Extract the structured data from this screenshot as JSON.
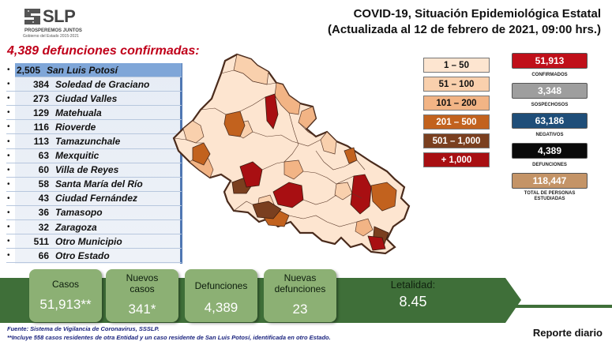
{
  "header": {
    "logo_text": "SLP",
    "logo_sub1": "PROSPEREMOS JUNTOS",
    "logo_sub2": "Gobierno del Estado 2015-2021",
    "title_line1": "COVID-19, Situación Epidemiológica Estatal",
    "title_line2": "(Actualizada al 12 de febrero de 2021, 09:00 hrs.)"
  },
  "deaths_heading": "4,389 defunciones confirmadas:",
  "municipalities": [
    {
      "bullet": "•",
      "count": "2,505",
      "name": "San Luis Potosí"
    },
    {
      "bullet": "•",
      "count": "384",
      "name": "Soledad de Graciano"
    },
    {
      "bullet": "•",
      "count": "273",
      "name": "Ciudad Valles"
    },
    {
      "bullet": "•",
      "count": "129",
      "name": "Matehuala"
    },
    {
      "bullet": "•",
      "count": "116",
      "name": "Rioverde"
    },
    {
      "bullet": "•",
      "count": "113",
      "name": "Tamazunchale"
    },
    {
      "bullet": "•",
      "count": "63",
      "name": "Mexquitic"
    },
    {
      "bullet": "•",
      "count": "60",
      "name": "Villa de Reyes"
    },
    {
      "bullet": "•",
      "count": "58",
      "name": "Santa María del Río"
    },
    {
      "bullet": "•",
      "count": "43",
      "name": "Ciudad Fernández"
    },
    {
      "bullet": "•",
      "count": "36",
      "name": "Tamasopo"
    },
    {
      "bullet": "•",
      "count": "32",
      "name": "Zaragoza"
    },
    {
      "bullet": "•",
      "count": "511",
      "name": "Otro Municipio"
    },
    {
      "bullet": "•",
      "count": "66",
      "name": "Otro Estado"
    }
  ],
  "legend": [
    {
      "label": "1 – 50",
      "bg": "#fde5d0",
      "fg": "#111111"
    },
    {
      "label": "51 – 100",
      "bg": "#f9d0ad",
      "fg": "#111111"
    },
    {
      "label": "101 – 200",
      "bg": "#f2b485",
      "fg": "#111111"
    },
    {
      "label": "201 – 500",
      "bg": "#c2621e",
      "fg": "#ffffff"
    },
    {
      "label": "501 – 1,000",
      "bg": "#7a3f1f",
      "fg": "#ffffff"
    },
    {
      "label": "+ 1,000",
      "bg": "#a80f12",
      "fg": "#ffffff"
    }
  ],
  "stats": [
    {
      "value": "51,913",
      "label": "CONFIRMADOS",
      "bg": "#c0101a"
    },
    {
      "value": "3,348",
      "label": "SOSPECHOSOS",
      "bg": "#9e9e9e"
    },
    {
      "value": "63,186",
      "label": "NEGATIVOS",
      "bg": "#1f4e79"
    },
    {
      "value": "4,389",
      "label": "DEFUNCIONES",
      "bg": "#0a0a0a"
    },
    {
      "value": "118,447",
      "label": "TOTAL DE PERSONAS ESTUDIADAS",
      "bg": "#c49467"
    }
  ],
  "summary": {
    "casos_label": "Casos",
    "casos_value": "51,913**",
    "nuevos_casos_label_1": "Nuevos",
    "nuevos_casos_label_2": "casos",
    "nuevos_casos_value": "341*",
    "defunciones_label": "Defunciones",
    "defunciones_value": "4,389",
    "nuevas_def_label_1": "Nuevas",
    "nuevas_def_label_2": "defunciones",
    "nuevas_def_value": "23",
    "letalidad_label": "Letalidad:",
    "letalidad_value": "8.45"
  },
  "footer": {
    "source": "Fuente: Sistema de Vigilancia de Coronavirus, SSSLP.",
    "note": "**Incluye 558 casos residentes de otra Entidad y un caso residente de San Luis Potosí, identificada en otro Estado.",
    "report": "Reporte diario"
  },
  "colors": {
    "green_bar": "#3f6f39",
    "green_card": "#8cb074",
    "map_light": "#fde5d0",
    "map_brown": "#c2621e",
    "map_dark_brown": "#7a3f1f",
    "map_red": "#a80f12"
  }
}
